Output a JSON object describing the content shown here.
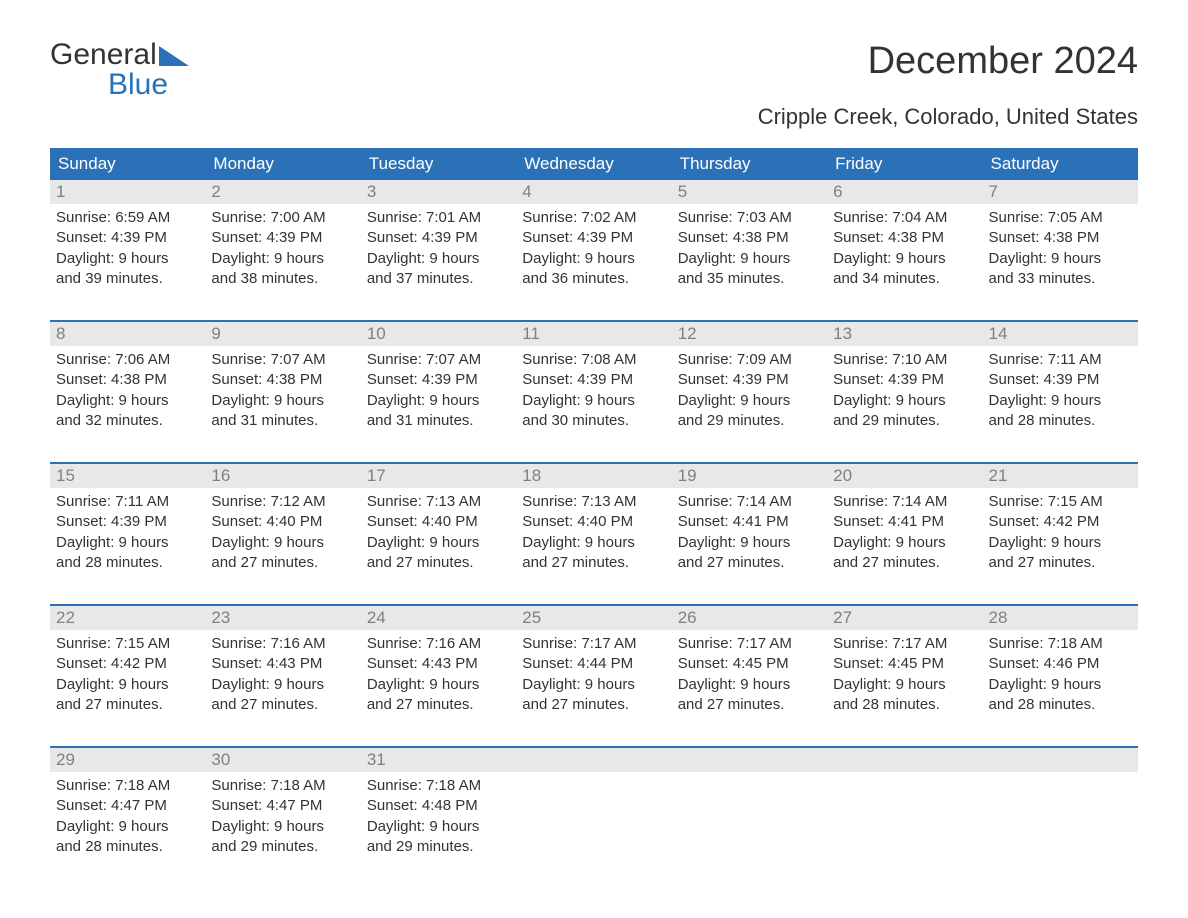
{
  "logo": {
    "word1": "General",
    "word2": "Blue",
    "flag_color": "#2b71b8",
    "text_color": "#333333",
    "blue_color": "#2b71b8"
  },
  "title": "December 2024",
  "subtitle": "Cripple Creek, Colorado, United States",
  "colors": {
    "header_bg": "#2b71b8",
    "header_text": "#ffffff",
    "daynum_bg": "#e8e8e8",
    "daynum_text": "#808080",
    "body_text": "#333333",
    "week_border": "#2b71b8",
    "page_bg": "#ffffff"
  },
  "day_names": [
    "Sunday",
    "Monday",
    "Tuesday",
    "Wednesday",
    "Thursday",
    "Friday",
    "Saturday"
  ],
  "weeks": [
    [
      {
        "n": "1",
        "sr": "Sunrise: 6:59 AM",
        "ss": "Sunset: 4:39 PM",
        "d1": "Daylight: 9 hours",
        "d2": "and 39 minutes."
      },
      {
        "n": "2",
        "sr": "Sunrise: 7:00 AM",
        "ss": "Sunset: 4:39 PM",
        "d1": "Daylight: 9 hours",
        "d2": "and 38 minutes."
      },
      {
        "n": "3",
        "sr": "Sunrise: 7:01 AM",
        "ss": "Sunset: 4:39 PM",
        "d1": "Daylight: 9 hours",
        "d2": "and 37 minutes."
      },
      {
        "n": "4",
        "sr": "Sunrise: 7:02 AM",
        "ss": "Sunset: 4:39 PM",
        "d1": "Daylight: 9 hours",
        "d2": "and 36 minutes."
      },
      {
        "n": "5",
        "sr": "Sunrise: 7:03 AM",
        "ss": "Sunset: 4:38 PM",
        "d1": "Daylight: 9 hours",
        "d2": "and 35 minutes."
      },
      {
        "n": "6",
        "sr": "Sunrise: 7:04 AM",
        "ss": "Sunset: 4:38 PM",
        "d1": "Daylight: 9 hours",
        "d2": "and 34 minutes."
      },
      {
        "n": "7",
        "sr": "Sunrise: 7:05 AM",
        "ss": "Sunset: 4:38 PM",
        "d1": "Daylight: 9 hours",
        "d2": "and 33 minutes."
      }
    ],
    [
      {
        "n": "8",
        "sr": "Sunrise: 7:06 AM",
        "ss": "Sunset: 4:38 PM",
        "d1": "Daylight: 9 hours",
        "d2": "and 32 minutes."
      },
      {
        "n": "9",
        "sr": "Sunrise: 7:07 AM",
        "ss": "Sunset: 4:38 PM",
        "d1": "Daylight: 9 hours",
        "d2": "and 31 minutes."
      },
      {
        "n": "10",
        "sr": "Sunrise: 7:07 AM",
        "ss": "Sunset: 4:39 PM",
        "d1": "Daylight: 9 hours",
        "d2": "and 31 minutes."
      },
      {
        "n": "11",
        "sr": "Sunrise: 7:08 AM",
        "ss": "Sunset: 4:39 PM",
        "d1": "Daylight: 9 hours",
        "d2": "and 30 minutes."
      },
      {
        "n": "12",
        "sr": "Sunrise: 7:09 AM",
        "ss": "Sunset: 4:39 PM",
        "d1": "Daylight: 9 hours",
        "d2": "and 29 minutes."
      },
      {
        "n": "13",
        "sr": "Sunrise: 7:10 AM",
        "ss": "Sunset: 4:39 PM",
        "d1": "Daylight: 9 hours",
        "d2": "and 29 minutes."
      },
      {
        "n": "14",
        "sr": "Sunrise: 7:11 AM",
        "ss": "Sunset: 4:39 PM",
        "d1": "Daylight: 9 hours",
        "d2": "and 28 minutes."
      }
    ],
    [
      {
        "n": "15",
        "sr": "Sunrise: 7:11 AM",
        "ss": "Sunset: 4:39 PM",
        "d1": "Daylight: 9 hours",
        "d2": "and 28 minutes."
      },
      {
        "n": "16",
        "sr": "Sunrise: 7:12 AM",
        "ss": "Sunset: 4:40 PM",
        "d1": "Daylight: 9 hours",
        "d2": "and 27 minutes."
      },
      {
        "n": "17",
        "sr": "Sunrise: 7:13 AM",
        "ss": "Sunset: 4:40 PM",
        "d1": "Daylight: 9 hours",
        "d2": "and 27 minutes."
      },
      {
        "n": "18",
        "sr": "Sunrise: 7:13 AM",
        "ss": "Sunset: 4:40 PM",
        "d1": "Daylight: 9 hours",
        "d2": "and 27 minutes."
      },
      {
        "n": "19",
        "sr": "Sunrise: 7:14 AM",
        "ss": "Sunset: 4:41 PM",
        "d1": "Daylight: 9 hours",
        "d2": "and 27 minutes."
      },
      {
        "n": "20",
        "sr": "Sunrise: 7:14 AM",
        "ss": "Sunset: 4:41 PM",
        "d1": "Daylight: 9 hours",
        "d2": "and 27 minutes."
      },
      {
        "n": "21",
        "sr": "Sunrise: 7:15 AM",
        "ss": "Sunset: 4:42 PM",
        "d1": "Daylight: 9 hours",
        "d2": "and 27 minutes."
      }
    ],
    [
      {
        "n": "22",
        "sr": "Sunrise: 7:15 AM",
        "ss": "Sunset: 4:42 PM",
        "d1": "Daylight: 9 hours",
        "d2": "and 27 minutes."
      },
      {
        "n": "23",
        "sr": "Sunrise: 7:16 AM",
        "ss": "Sunset: 4:43 PM",
        "d1": "Daylight: 9 hours",
        "d2": "and 27 minutes."
      },
      {
        "n": "24",
        "sr": "Sunrise: 7:16 AM",
        "ss": "Sunset: 4:43 PM",
        "d1": "Daylight: 9 hours",
        "d2": "and 27 minutes."
      },
      {
        "n": "25",
        "sr": "Sunrise: 7:17 AM",
        "ss": "Sunset: 4:44 PM",
        "d1": "Daylight: 9 hours",
        "d2": "and 27 minutes."
      },
      {
        "n": "26",
        "sr": "Sunrise: 7:17 AM",
        "ss": "Sunset: 4:45 PM",
        "d1": "Daylight: 9 hours",
        "d2": "and 27 minutes."
      },
      {
        "n": "27",
        "sr": "Sunrise: 7:17 AM",
        "ss": "Sunset: 4:45 PM",
        "d1": "Daylight: 9 hours",
        "d2": "and 28 minutes."
      },
      {
        "n": "28",
        "sr": "Sunrise: 7:18 AM",
        "ss": "Sunset: 4:46 PM",
        "d1": "Daylight: 9 hours",
        "d2": "and 28 minutes."
      }
    ],
    [
      {
        "n": "29",
        "sr": "Sunrise: 7:18 AM",
        "ss": "Sunset: 4:47 PM",
        "d1": "Daylight: 9 hours",
        "d2": "and 28 minutes."
      },
      {
        "n": "30",
        "sr": "Sunrise: 7:18 AM",
        "ss": "Sunset: 4:47 PM",
        "d1": "Daylight: 9 hours",
        "d2": "and 29 minutes."
      },
      {
        "n": "31",
        "sr": "Sunrise: 7:18 AM",
        "ss": "Sunset: 4:48 PM",
        "d1": "Daylight: 9 hours",
        "d2": "and 29 minutes."
      },
      null,
      null,
      null,
      null
    ]
  ]
}
